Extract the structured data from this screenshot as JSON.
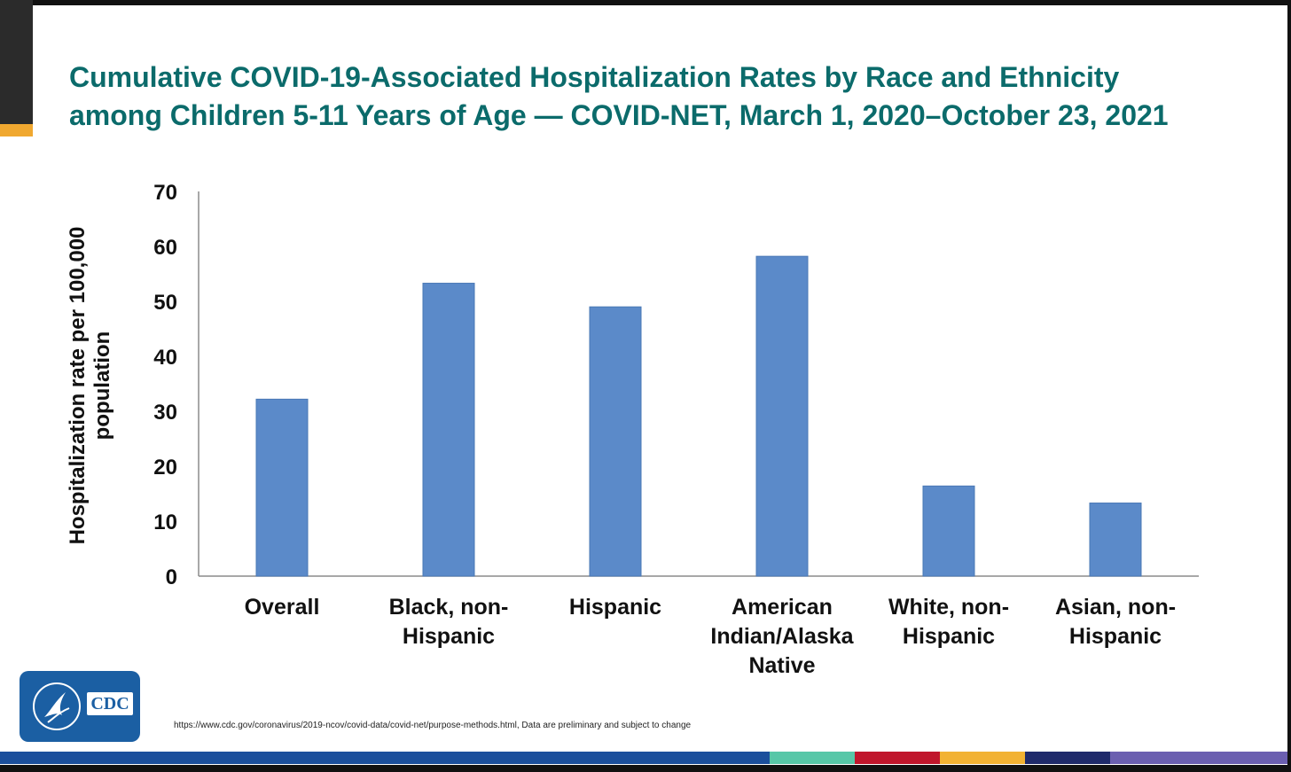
{
  "slide": {
    "title_line1": "Cumulative COVID-19-Associated Hospitalization Rates by Race and Ethnicity",
    "title_line2": "among Children 5-11 Years of Age — COVID-NET, March 1, 2020–October 23, 2021",
    "source_note": "https://www.cdc.gov/coronavirus/2019-ncov/covid-data/covid-net/purpose-methods.html, Data are preliminary and subject to change",
    "logo_text": "CDC",
    "colors": {
      "title": "#0b6b6b",
      "bar": "#5b8ac9",
      "stripes": [
        "#1b4f9c",
        "#57c7a8",
        "#c0162c",
        "#f2b233",
        "#1f2a6b",
        "#6b5fb0"
      ]
    }
  },
  "chart_data": {
    "type": "bar",
    "categories": [
      [
        "Overall"
      ],
      [
        "Black, non-",
        "Hispanic"
      ],
      [
        "Hispanic"
      ],
      [
        "American",
        "Indian/Alaska",
        "Native"
      ],
      [
        "White, non-",
        "Hispanic"
      ],
      [
        "Asian, non-",
        "Hispanic"
      ]
    ],
    "values": [
      32.2,
      53.3,
      49.0,
      58.2,
      16.4,
      13.3
    ],
    "ylabel_lines": [
      "Hospitalization rate per 100,000",
      "population"
    ],
    "xlabel": "",
    "ylim": [
      0,
      70
    ],
    "yticks": [
      0,
      10,
      20,
      30,
      40,
      50,
      60,
      70
    ],
    "grid": false,
    "legend": "none"
  }
}
